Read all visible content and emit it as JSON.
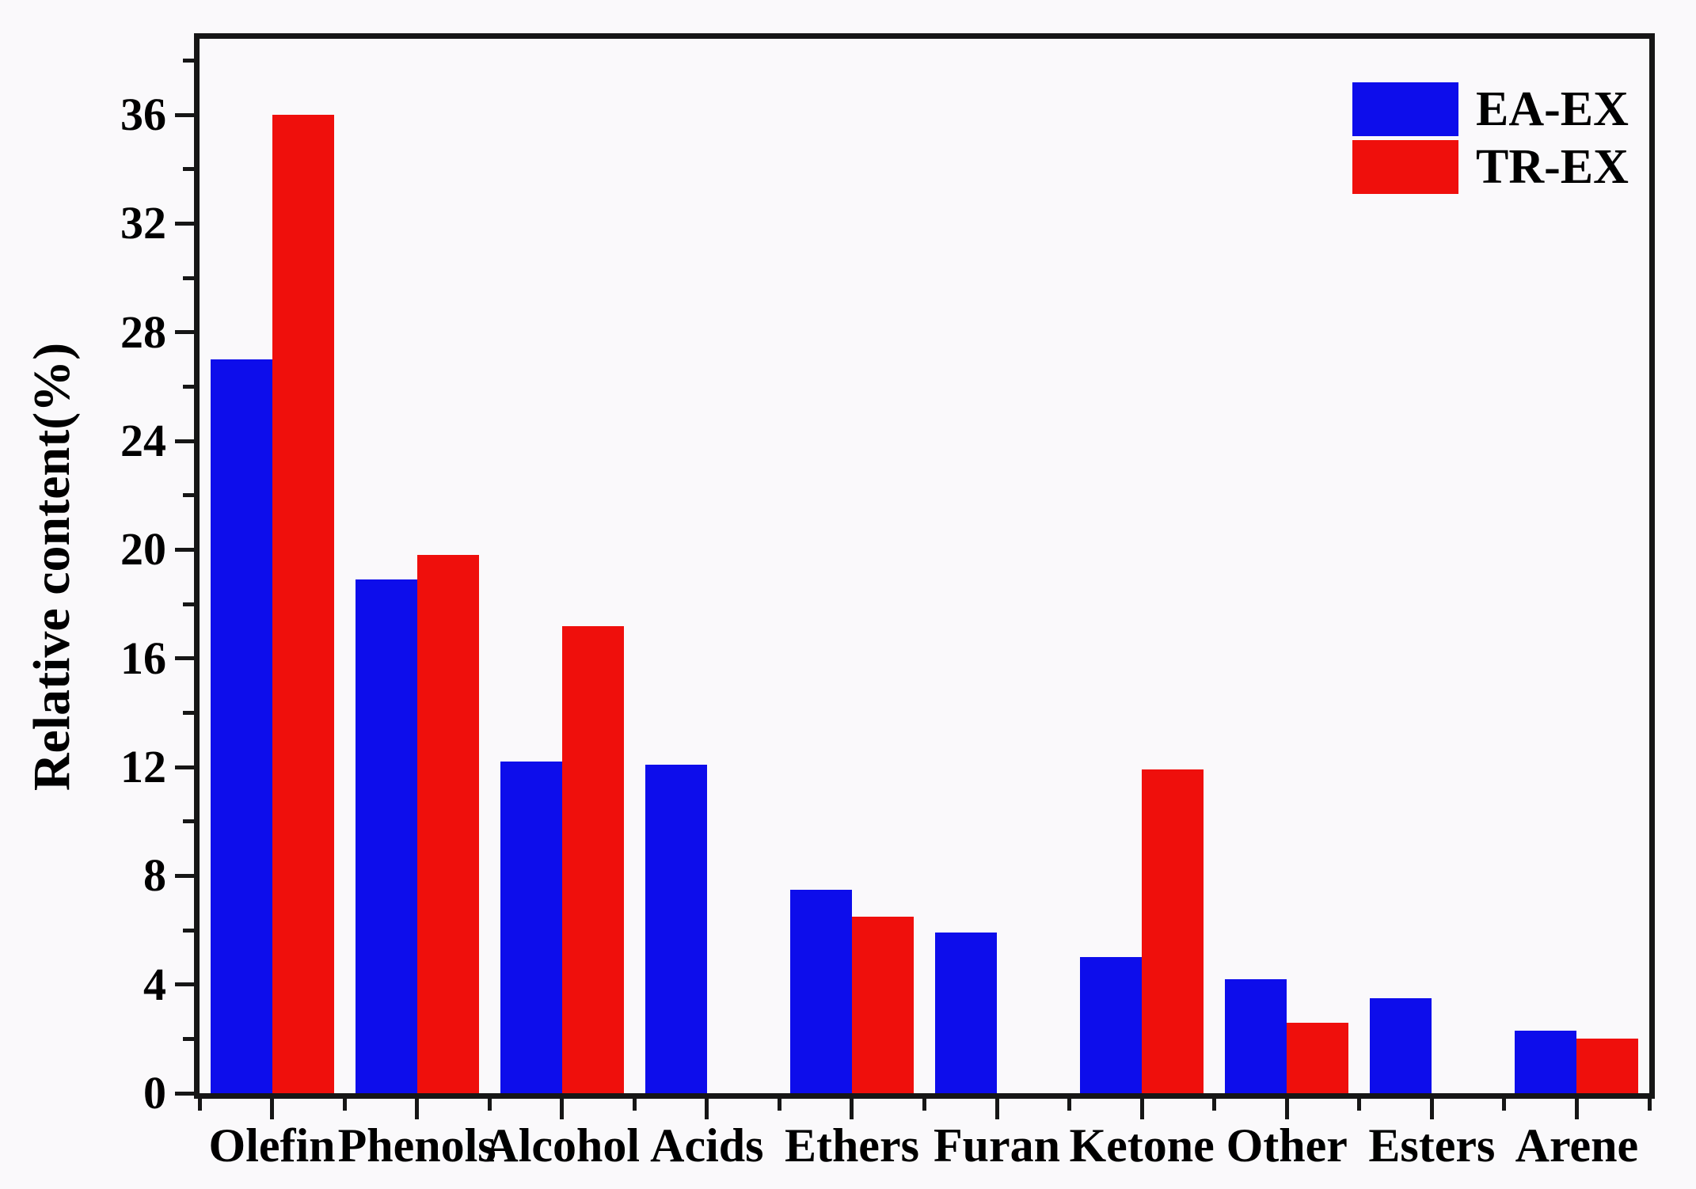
{
  "figure": {
    "background_color": "#faf9fb",
    "axis_color": "#161616",
    "text_color": "#000000"
  },
  "legend": {
    "position": "top-right",
    "items": [
      {
        "label": "EA-EX",
        "color": "#0d0deb"
      },
      {
        "label": "TR-EX",
        "color": "#ef0f0c"
      }
    ]
  },
  "chart_data": {
    "type": "bar",
    "title": "",
    "xlabel": "",
    "ylabel": "Relative content(%)",
    "categories": [
      "Olefin",
      "Phenols",
      "Alcohol",
      "Acids",
      "Ethers",
      "Furan",
      "Ketone",
      "Other",
      "Esters",
      "Arene"
    ],
    "series": [
      {
        "name": "EA-EX",
        "color": "#0d0deb",
        "values": [
          27.0,
          18.9,
          12.2,
          12.1,
          7.5,
          5.9,
          5.0,
          4.2,
          3.5,
          2.3
        ]
      },
      {
        "name": "TR-EX",
        "color": "#ef0f0c",
        "values": [
          36.0,
          19.8,
          17.2,
          null,
          6.5,
          null,
          11.9,
          2.6,
          null,
          2.0
        ]
      }
    ],
    "ylim": [
      0,
      38.8
    ],
    "yticks_major": [
      0,
      4,
      8,
      12,
      16,
      20,
      24,
      28,
      32,
      36
    ],
    "yticks_minor": [
      2,
      6,
      10,
      14,
      18,
      22,
      26,
      30,
      34,
      38
    ],
    "grid": false,
    "legend_position": "top-right"
  }
}
